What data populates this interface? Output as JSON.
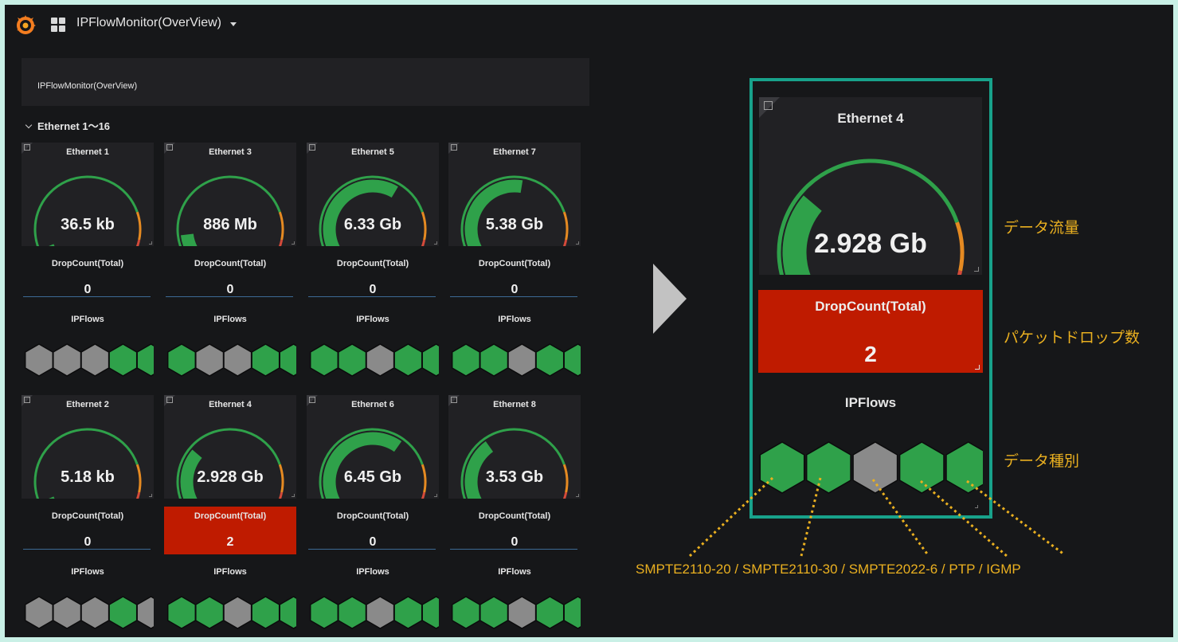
{
  "header": {
    "title": "IPFlowMonitor(OverView)"
  },
  "text_panel": {
    "text": "IPFlowMonitor(OverView)"
  },
  "row": {
    "title": "Ethernet 1～16"
  },
  "colors": {
    "green": "#2fa14a",
    "gray": "#8a8a8a",
    "red": "#bf1b00",
    "accent": "#18a28b",
    "annotation": "#eab020"
  },
  "drop_title": "DropCount(Total)",
  "flows_title": "IPFlows",
  "panels": [
    {
      "name": "Ethernet 1",
      "value_text": "36.5 kb",
      "level": 0.02,
      "drop": "0",
      "drop_alert": false,
      "flows": [
        "gray",
        "gray",
        "gray",
        "green",
        "green"
      ]
    },
    {
      "name": "Ethernet 3",
      "value_text": "886 Mb",
      "level": 0.09,
      "drop": "0",
      "drop_alert": false,
      "flows": [
        "green",
        "gray",
        "gray",
        "green",
        "green"
      ]
    },
    {
      "name": "Ethernet 5",
      "value_text": "6.33 Gb",
      "level": 0.63,
      "drop": "0",
      "drop_alert": false,
      "flows": [
        "green",
        "green",
        "gray",
        "green",
        "green"
      ]
    },
    {
      "name": "Ethernet 7",
      "value_text": "5.38 Gb",
      "level": 0.54,
      "drop": "0",
      "drop_alert": false,
      "flows": [
        "green",
        "green",
        "gray",
        "green",
        "green"
      ]
    },
    {
      "name": "Ethernet 2",
      "value_text": "5.18 kb",
      "level": 0.02,
      "drop": "0",
      "drop_alert": false,
      "flows": [
        "gray",
        "gray",
        "gray",
        "green",
        "gray"
      ]
    },
    {
      "name": "Ethernet 4",
      "value_text": "2.928 Gb",
      "level": 0.29,
      "drop": "2",
      "drop_alert": true,
      "flows": [
        "green",
        "green",
        "gray",
        "green",
        "green"
      ]
    },
    {
      "name": "Ethernet 6",
      "value_text": "6.45 Gb",
      "level": 0.65,
      "drop": "0",
      "drop_alert": false,
      "flows": [
        "green",
        "green",
        "gray",
        "green",
        "green"
      ]
    },
    {
      "name": "Ethernet 8",
      "value_text": "3.53 Gb",
      "level": 0.35,
      "drop": "0",
      "drop_alert": false,
      "flows": [
        "green",
        "green",
        "gray",
        "green",
        "green"
      ]
    }
  ],
  "zoom": {
    "name": "Ethernet 4",
    "value_text": "2.928 Gb",
    "level": 0.29,
    "drop_title": "DropCount(Total)",
    "drop": "2",
    "flows_title": "IPFlows",
    "flows": [
      "green",
      "green",
      "gray",
      "green",
      "green"
    ]
  },
  "annotations": {
    "flow_rate": "データ流量",
    "packet_drop": "パケットドロップ数",
    "data_type": "データ種別",
    "legend": "SMPTE2110-20 / SMPTE2110-30 / SMPTE2022-6 / PTP / IGMP"
  }
}
